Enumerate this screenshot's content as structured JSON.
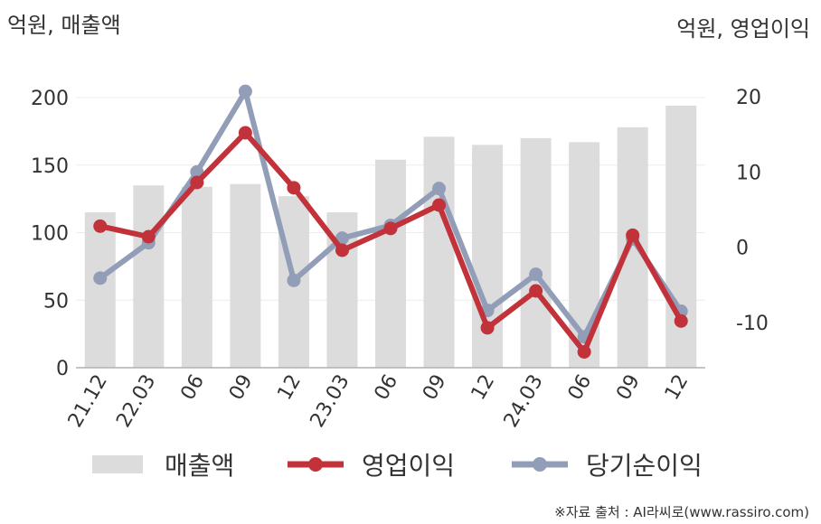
{
  "chart_data": {
    "type": "bar+line",
    "categories": [
      "21.12",
      "22.03",
      "06",
      "09",
      "12",
      "23.03",
      "06",
      "09",
      "12",
      "24.03",
      "06",
      "09",
      "12"
    ],
    "y_left_label": "억원, 매출액",
    "y_right_label": "억원, 영업이익",
    "y_left_lim": [
      0,
      200
    ],
    "y_left_ticks": [
      0,
      50,
      100,
      150,
      200
    ],
    "y_right_lim": [
      -16,
      20
    ],
    "y_right_ticks": [
      -10,
      0,
      10,
      20
    ],
    "grid": "horizontal",
    "legend_position": "bottom",
    "series": [
      {
        "name": "매출액",
        "type": "bar",
        "axis": "left",
        "color": "#dcdcdc",
        "values": [
          115,
          135,
          134,
          136,
          127,
          115,
          154,
          171,
          165,
          170,
          167,
          178,
          194
        ]
      },
      {
        "name": "영업이익",
        "type": "line",
        "axis": "right",
        "color": "#c1323a",
        "values": [
          2.8,
          1.4,
          8.6,
          15.2,
          7.9,
          -0.4,
          2.5,
          5.6,
          -10.7,
          -5.8,
          -13.9,
          1.6,
          -9.8
        ]
      },
      {
        "name": "당기순이익",
        "type": "line",
        "axis": "right",
        "color": "#929db8",
        "values": [
          -4.1,
          0.6,
          10.0,
          20.7,
          -4.4,
          1.2,
          2.9,
          7.8,
          -8.4,
          -3.6,
          -11.9,
          1.1,
          -8.5
        ]
      }
    ]
  },
  "source_text": "※자료 출처 : AI라씨로(www.rassiro.com)"
}
